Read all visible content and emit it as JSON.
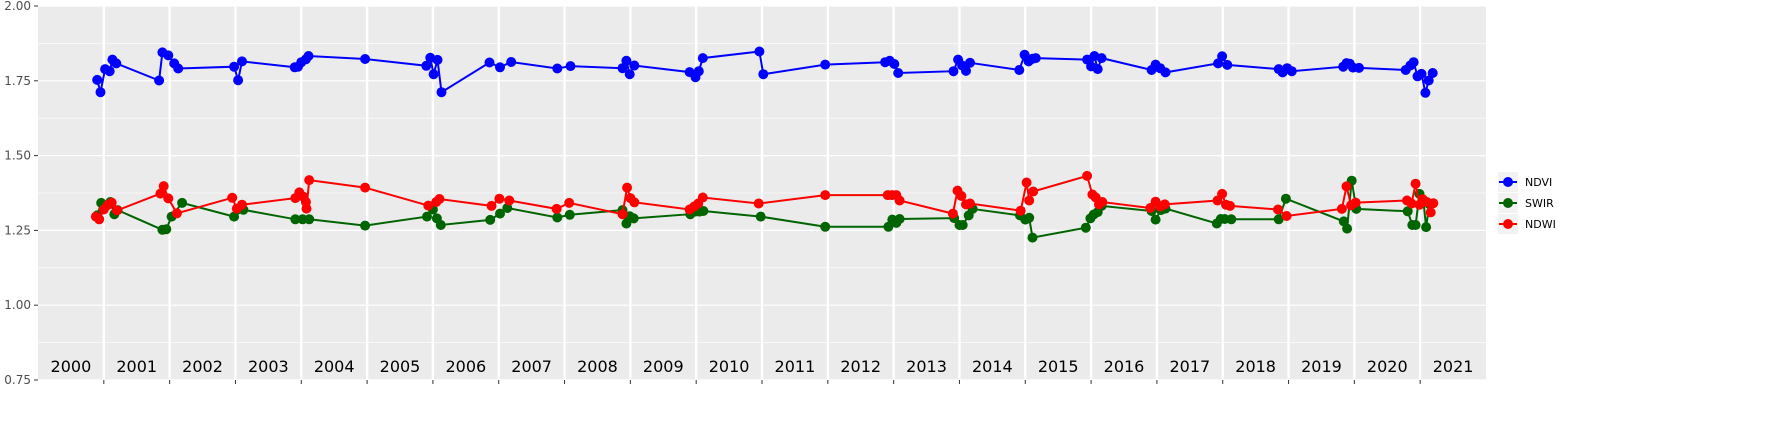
{
  "chart_data": {
    "type": "line",
    "title": "",
    "xlabel": "",
    "ylabel": "",
    "ylim": [
      0.75,
      2.0
    ],
    "yticks": [
      0.75,
      1.0,
      1.25,
      1.5,
      1.75,
      2.0
    ],
    "ytick_labels": [
      "0.75",
      "1.00",
      "1.25",
      "1.50",
      "1.75",
      "2.00"
    ],
    "xlim": [
      2000.0,
      2022.0
    ],
    "year_labels": [
      "2000",
      "2001",
      "2002",
      "2003",
      "2004",
      "2005",
      "2006",
      "2007",
      "2008",
      "2009",
      "2010",
      "2011",
      "2012",
      "2013",
      "2014",
      "2015",
      "2016",
      "2017",
      "2018",
      "2019",
      "2020",
      "2021"
    ],
    "grid": true,
    "legend_position": "right",
    "series": [
      {
        "name": "NDVI",
        "color": "#0000ff",
        "points": [
          [
            2000.9,
            1.753
          ],
          [
            2000.95,
            1.712
          ],
          [
            2001.02,
            1.789
          ],
          [
            2001.09,
            1.782
          ],
          [
            2001.13,
            1.821
          ],
          [
            2001.19,
            1.808
          ],
          [
            2001.84,
            1.751
          ],
          [
            2001.89,
            1.845
          ],
          [
            2001.98,
            1.835
          ],
          [
            2002.07,
            1.808
          ],
          [
            2002.13,
            1.791
          ],
          [
            2002.98,
            1.797
          ],
          [
            2003.04,
            1.752
          ],
          [
            2003.1,
            1.815
          ],
          [
            2003.9,
            1.795
          ],
          [
            2003.95,
            1.797
          ],
          [
            2004.0,
            1.812
          ],
          [
            2004.07,
            1.822
          ],
          [
            2004.11,
            1.833
          ],
          [
            2004.97,
            1.823
          ],
          [
            2005.9,
            1.8
          ],
          [
            2005.96,
            1.827
          ],
          [
            2006.01,
            1.772
          ],
          [
            2006.07,
            1.82
          ],
          [
            2006.13,
            1.712
          ],
          [
            2006.86,
            1.811
          ],
          [
            2007.02,
            1.795
          ],
          [
            2007.19,
            1.813
          ],
          [
            2007.89,
            1.791
          ],
          [
            2008.09,
            1.799
          ],
          [
            2008.88,
            1.792
          ],
          [
            2008.94,
            1.817
          ],
          [
            2008.99,
            1.772
          ],
          [
            2009.06,
            1.801
          ],
          [
            2009.9,
            1.779
          ],
          [
            2009.99,
            1.762
          ],
          [
            2010.04,
            1.782
          ],
          [
            2010.1,
            1.826
          ],
          [
            2010.96,
            1.848
          ],
          [
            2011.02,
            1.772
          ],
          [
            2011.96,
            1.804
          ],
          [
            2012.87,
            1.812
          ],
          [
            2012.94,
            1.817
          ],
          [
            2013.01,
            1.806
          ],
          [
            2013.07,
            1.776
          ],
          [
            2013.91,
            1.782
          ],
          [
            2013.98,
            1.821
          ],
          [
            2014.04,
            1.801
          ],
          [
            2014.1,
            1.783
          ],
          [
            2014.16,
            1.81
          ],
          [
            2014.91,
            1.786
          ],
          [
            2014.99,
            1.837
          ],
          [
            2015.05,
            1.815
          ],
          [
            2015.11,
            1.824
          ],
          [
            2015.16,
            1.826
          ],
          [
            2015.94,
            1.821
          ],
          [
            2016.0,
            1.798
          ],
          [
            2016.05,
            1.833
          ],
          [
            2016.1,
            1.789
          ],
          [
            2016.16,
            1.826
          ],
          [
            2016.92,
            1.786
          ],
          [
            2016.98,
            1.804
          ],
          [
            2017.05,
            1.792
          ],
          [
            2017.13,
            1.778
          ],
          [
            2017.93,
            1.808
          ],
          [
            2017.99,
            1.832
          ],
          [
            2018.07,
            1.803
          ],
          [
            2018.85,
            1.789
          ],
          [
            2018.91,
            1.778
          ],
          [
            2018.98,
            1.792
          ],
          [
            2019.05,
            1.782
          ],
          [
            2019.83,
            1.797
          ],
          [
            2019.88,
            1.809
          ],
          [
            2019.93,
            1.807
          ],
          [
            2019.98,
            1.794
          ],
          [
            2020.07,
            1.793
          ],
          [
            2020.78,
            1.786
          ],
          [
            2020.85,
            1.801
          ],
          [
            2020.9,
            1.812
          ],
          [
            2020.96,
            1.765
          ],
          [
            2021.02,
            1.773
          ],
          [
            2021.08,
            1.71
          ],
          [
            2021.13,
            1.751
          ],
          [
            2021.19,
            1.776
          ]
        ]
      },
      {
        "name": "SWIR",
        "color": "#006400",
        "points": [
          [
            2000.9,
            1.3
          ],
          [
            2000.96,
            1.342
          ],
          [
            2001.04,
            1.333
          ],
          [
            2001.1,
            1.345
          ],
          [
            2001.16,
            1.304
          ],
          [
            2001.21,
            1.318
          ],
          [
            2001.89,
            1.252
          ],
          [
            2001.95,
            1.254
          ],
          [
            2002.03,
            1.296
          ],
          [
            2002.19,
            1.342
          ],
          [
            2002.98,
            1.296
          ],
          [
            2003.12,
            1.319
          ],
          [
            2003.91,
            1.287
          ],
          [
            2004.02,
            1.287
          ],
          [
            2004.12,
            1.287
          ],
          [
            2004.97,
            1.266
          ],
          [
            2005.91,
            1.296
          ],
          [
            2006.0,
            1.32
          ],
          [
            2006.06,
            1.29
          ],
          [
            2006.12,
            1.268
          ],
          [
            2006.87,
            1.285
          ],
          [
            2007.02,
            1.306
          ],
          [
            2007.13,
            1.325
          ],
          [
            2007.89,
            1.293
          ],
          [
            2008.08,
            1.302
          ],
          [
            2008.88,
            1.318
          ],
          [
            2008.94,
            1.273
          ],
          [
            2008.99,
            1.297
          ],
          [
            2009.05,
            1.29
          ],
          [
            2009.91,
            1.304
          ],
          [
            2009.99,
            1.313
          ],
          [
            2010.05,
            1.313
          ],
          [
            2010.11,
            1.315
          ],
          [
            2010.98,
            1.296
          ],
          [
            2011.96,
            1.262
          ],
          [
            2012.92,
            1.262
          ],
          [
            2012.98,
            1.286
          ],
          [
            2013.04,
            1.275
          ],
          [
            2013.09,
            1.288
          ],
          [
            2013.92,
            1.291
          ],
          [
            2014.0,
            1.268
          ],
          [
            2014.05,
            1.268
          ],
          [
            2014.14,
            1.3
          ],
          [
            2014.2,
            1.322
          ],
          [
            2014.92,
            1.3
          ],
          [
            2015.0,
            1.286
          ],
          [
            2015.06,
            1.292
          ],
          [
            2015.11,
            1.226
          ],
          [
            2015.92,
            1.259
          ],
          [
            2015.99,
            1.29
          ],
          [
            2016.04,
            1.303
          ],
          [
            2016.1,
            1.311
          ],
          [
            2016.16,
            1.332
          ],
          [
            2016.92,
            1.315
          ],
          [
            2016.98,
            1.286
          ],
          [
            2017.06,
            1.318
          ],
          [
            2017.13,
            1.323
          ],
          [
            2017.91,
            1.273
          ],
          [
            2017.97,
            1.288
          ],
          [
            2018.03,
            1.288
          ],
          [
            2018.13,
            1.287
          ],
          [
            2018.85,
            1.287
          ],
          [
            2018.96,
            1.356
          ],
          [
            2019.84,
            1.28
          ],
          [
            2019.89,
            1.256
          ],
          [
            2019.96,
            1.416
          ],
          [
            2020.03,
            1.322
          ],
          [
            2020.81,
            1.314
          ],
          [
            2020.88,
            1.268
          ],
          [
            2020.93,
            1.268
          ],
          [
            2020.99,
            1.372
          ],
          [
            2021.05,
            1.346
          ],
          [
            2021.09,
            1.261
          ],
          [
            2021.14,
            1.338
          ]
        ]
      },
      {
        "name": "NDWI",
        "color": "#ff0000",
        "points": [
          [
            2000.88,
            1.296
          ],
          [
            2000.93,
            1.287
          ],
          [
            2001.0,
            1.32
          ],
          [
            2001.06,
            1.335
          ],
          [
            2001.12,
            1.343
          ],
          [
            2001.2,
            1.317
          ],
          [
            2001.86,
            1.373
          ],
          [
            2001.91,
            1.398
          ],
          [
            2001.98,
            1.357
          ],
          [
            2002.11,
            1.307
          ],
          [
            2002.95,
            1.359
          ],
          [
            2003.02,
            1.323
          ],
          [
            2003.1,
            1.336
          ],
          [
            2003.91,
            1.358
          ],
          [
            2003.97,
            1.377
          ],
          [
            2004.03,
            1.363
          ],
          [
            2004.07,
            1.345
          ],
          [
            2004.08,
            1.323
          ],
          [
            2004.12,
            1.418
          ],
          [
            2004.97,
            1.393
          ],
          [
            2005.93,
            1.333
          ],
          [
            2006.05,
            1.345
          ],
          [
            2006.1,
            1.355
          ],
          [
            2006.89,
            1.332
          ],
          [
            2007.01,
            1.356
          ],
          [
            2007.16,
            1.35
          ],
          [
            2007.88,
            1.322
          ],
          [
            2008.07,
            1.342
          ],
          [
            2008.88,
            1.304
          ],
          [
            2008.95,
            1.393
          ],
          [
            2009.0,
            1.358
          ],
          [
            2009.06,
            1.344
          ],
          [
            2009.9,
            1.32
          ],
          [
            2009.97,
            1.33
          ],
          [
            2010.03,
            1.34
          ],
          [
            2010.1,
            1.36
          ],
          [
            2010.95,
            1.34
          ],
          [
            2011.96,
            1.368
          ],
          [
            2012.91,
            1.368
          ],
          [
            2012.98,
            1.368
          ],
          [
            2013.04,
            1.368
          ],
          [
            2013.09,
            1.35
          ],
          [
            2013.9,
            1.306
          ],
          [
            2013.97,
            1.383
          ],
          [
            2014.03,
            1.365
          ],
          [
            2014.1,
            1.337
          ],
          [
            2014.16,
            1.34
          ],
          [
            2014.93,
            1.316
          ],
          [
            2015.02,
            1.41
          ],
          [
            2015.06,
            1.35
          ],
          [
            2015.12,
            1.38
          ],
          [
            2015.94,
            1.432
          ],
          [
            2016.02,
            1.37
          ],
          [
            2016.07,
            1.36
          ],
          [
            2016.12,
            1.337
          ],
          [
            2016.17,
            1.345
          ],
          [
            2016.9,
            1.325
          ],
          [
            2016.98,
            1.346
          ],
          [
            2017.05,
            1.33
          ],
          [
            2017.12,
            1.337
          ],
          [
            2017.92,
            1.35
          ],
          [
            2017.99,
            1.372
          ],
          [
            2018.05,
            1.336
          ],
          [
            2018.11,
            1.332
          ],
          [
            2018.84,
            1.32
          ],
          [
            2018.97,
            1.298
          ],
          [
            2019.81,
            1.322
          ],
          [
            2019.88,
            1.397
          ],
          [
            2019.95,
            1.334
          ],
          [
            2020.02,
            1.343
          ],
          [
            2020.8,
            1.35
          ],
          [
            2020.87,
            1.34
          ],
          [
            2020.93,
            1.406
          ],
          [
            2020.99,
            1.336
          ],
          [
            2021.04,
            1.354
          ],
          [
            2021.1,
            1.345
          ],
          [
            2021.16,
            1.31
          ],
          [
            2021.2,
            1.341
          ]
        ]
      }
    ]
  }
}
